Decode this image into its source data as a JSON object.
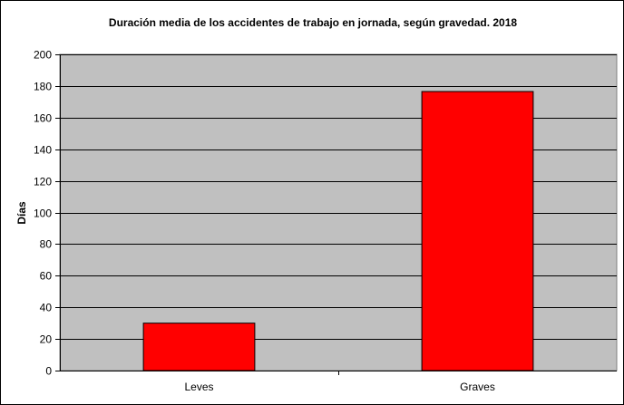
{
  "chart_data": {
    "type": "bar",
    "title": "Duración media de los accidentes de trabajo en jornada, según gravedad. 2018",
    "xlabel": "",
    "ylabel": "Días",
    "categories": [
      "Leves",
      "Graves"
    ],
    "values": [
      30,
      176.5
    ],
    "ylim": [
      0,
      200
    ],
    "yticks": [
      "0",
      "20",
      "40",
      "60",
      "80",
      "100",
      "120",
      "140",
      "160",
      "180",
      "200"
    ],
    "grid": true,
    "legend": "none",
    "colors": {
      "bar": "#ff0000",
      "plot_background": "#c0c0c0",
      "gridline": "#000000"
    }
  }
}
